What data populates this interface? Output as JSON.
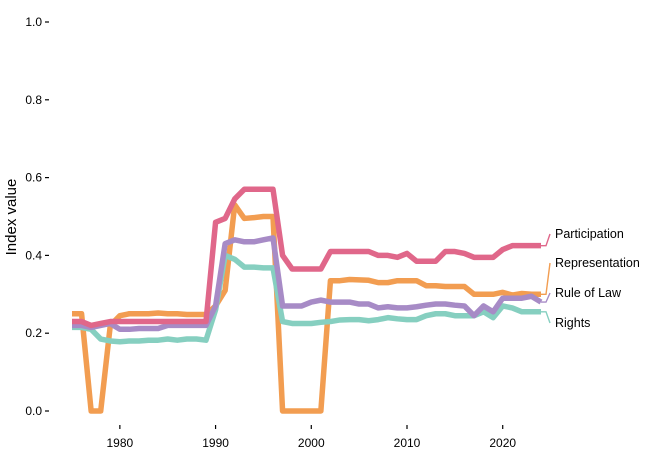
{
  "chart_data": {
    "type": "line",
    "title": "",
    "xlabel": "",
    "ylabel": "Index value",
    "xlim": [
      1975,
      2024
    ],
    "ylim": [
      0,
      1
    ],
    "x_ticks": [
      1980,
      1990,
      2000,
      2010,
      2020
    ],
    "y_ticks": [
      0.0,
      0.2,
      0.4,
      0.6,
      0.8,
      1.0
    ],
    "y_tick_labels": [
      "0.0",
      "0.2",
      "0.4",
      "0.6",
      "0.8",
      "1.0"
    ],
    "grid": false,
    "legend": "direct-labels-right",
    "x": [
      1975,
      1976,
      1977,
      1978,
      1979,
      1980,
      1981,
      1982,
      1983,
      1984,
      1985,
      1986,
      1987,
      1988,
      1989,
      1990,
      1991,
      1992,
      1993,
      1994,
      1995,
      1996,
      1997,
      1998,
      1999,
      2000,
      2001,
      2002,
      2003,
      2004,
      2005,
      2006,
      2007,
      2008,
      2009,
      2010,
      2011,
      2012,
      2013,
      2014,
      2015,
      2016,
      2017,
      2018,
      2019,
      2020,
      2021,
      2022,
      2023,
      2024
    ],
    "series": [
      {
        "name": "Participation",
        "color": "#e0678a",
        "values": [
          0.23,
          0.23,
          0.22,
          0.225,
          0.23,
          0.23,
          0.23,
          0.23,
          0.23,
          0.23,
          0.23,
          0.23,
          0.23,
          0.23,
          0.23,
          0.485,
          0.495,
          0.545,
          0.57,
          0.57,
          0.57,
          0.57,
          0.4,
          0.365,
          0.365,
          0.365,
          0.365,
          0.41,
          0.41,
          0.41,
          0.41,
          0.41,
          0.4,
          0.4,
          0.395,
          0.405,
          0.385,
          0.385,
          0.385,
          0.41,
          0.41,
          0.405,
          0.395,
          0.395,
          0.395,
          0.415,
          0.425,
          0.425,
          0.425,
          0.425
        ]
      },
      {
        "name": "Representation",
        "color": "#f29d51",
        "values": [
          0.25,
          0.25,
          0.0,
          0.0,
          0.22,
          0.245,
          0.25,
          0.25,
          0.25,
          0.252,
          0.25,
          0.25,
          0.248,
          0.248,
          0.248,
          0.27,
          0.31,
          0.53,
          0.495,
          0.497,
          0.5,
          0.5,
          0.0,
          0.0,
          0.0,
          0.0,
          0.0,
          0.335,
          0.335,
          0.338,
          0.337,
          0.336,
          0.33,
          0.33,
          0.335,
          0.335,
          0.335,
          0.322,
          0.322,
          0.32,
          0.32,
          0.32,
          0.3,
          0.3,
          0.3,
          0.305,
          0.298,
          0.302,
          0.3,
          0.3
        ]
      },
      {
        "name": "Rule of Law",
        "color": "#a78bc6",
        "values": [
          0.22,
          0.22,
          0.215,
          0.22,
          0.225,
          0.21,
          0.21,
          0.212,
          0.212,
          0.212,
          0.22,
          0.22,
          0.22,
          0.22,
          0.22,
          0.27,
          0.43,
          0.44,
          0.435,
          0.435,
          0.44,
          0.445,
          0.27,
          0.27,
          0.27,
          0.28,
          0.285,
          0.28,
          0.28,
          0.28,
          0.275,
          0.275,
          0.265,
          0.268,
          0.265,
          0.265,
          0.268,
          0.272,
          0.275,
          0.275,
          0.272,
          0.27,
          0.245,
          0.27,
          0.255,
          0.29,
          0.29,
          0.29,
          0.295,
          0.28
        ]
      },
      {
        "name": "Rights",
        "color": "#86cfc0",
        "values": [
          0.215,
          0.215,
          0.21,
          0.185,
          0.18,
          0.178,
          0.18,
          0.18,
          0.182,
          0.182,
          0.185,
          0.182,
          0.185,
          0.185,
          0.182,
          0.26,
          0.4,
          0.39,
          0.37,
          0.37,
          0.368,
          0.368,
          0.23,
          0.225,
          0.225,
          0.225,
          0.228,
          0.23,
          0.234,
          0.235,
          0.235,
          0.232,
          0.235,
          0.24,
          0.237,
          0.235,
          0.235,
          0.245,
          0.25,
          0.25,
          0.245,
          0.245,
          0.245,
          0.255,
          0.24,
          0.27,
          0.265,
          0.255,
          0.255,
          0.255
        ]
      }
    ]
  }
}
